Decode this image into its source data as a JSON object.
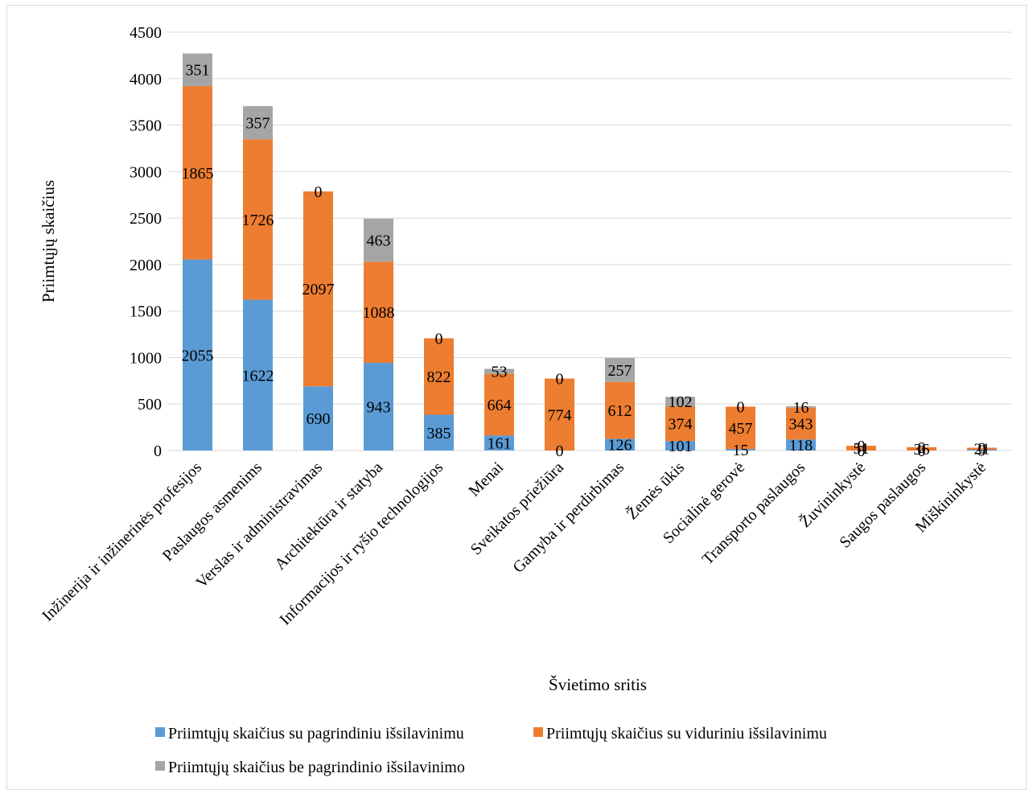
{
  "chart_data": {
    "type": "bar",
    "stacked": true,
    "title": "",
    "xlabel": "Švietimo sritis",
    "ylabel": "Priimtųjų skaičius",
    "ylim": [
      0,
      4500
    ],
    "yticks": [
      "0",
      "500",
      "1000",
      "1500",
      "2000",
      "2500",
      "3000",
      "3500",
      "4000",
      "4500"
    ],
    "grid": true,
    "legend_position": "bottom",
    "categories": [
      "Inžinerija ir inžinerinės profesijos",
      "Paslaugos asmenims",
      "Verslas ir administravimas",
      "Architektūra ir statyba",
      "Informacijos ir ryšio technologijos",
      "Menai",
      "Sveikatos priežiūra",
      "Gamyba ir perdirbimas",
      "Žemės ūkis",
      "Socialinė gerovė",
      "Transporto paslaugos",
      "Žuvininkystė",
      "Saugos paslaugos",
      "Miškininkystė"
    ],
    "series": [
      {
        "name": "Priimtųjų skaičius su pagrindiniu išsilavinimu",
        "color": "#5b9bd5",
        "values": [
          2055,
          1622,
          690,
          943,
          385,
          161,
          0,
          126,
          101,
          15,
          118,
          0,
          0,
          9
        ]
      },
      {
        "name": "Priimtųjų skaičius su viduriniu išsilavinimu",
        "color": "#ed7d31",
        "values": [
          1865,
          1726,
          2097,
          1088,
          822,
          664,
          774,
          612,
          374,
          457,
          343,
          51,
          36,
          21
        ]
      },
      {
        "name": "Priimtųjų skaičius be pagrindinio išsilavinimo",
        "color": "#a5a5a5",
        "values": [
          351,
          357,
          0,
          463,
          0,
          53,
          0,
          257,
          102,
          0,
          16,
          0,
          0,
          0
        ]
      }
    ]
  }
}
